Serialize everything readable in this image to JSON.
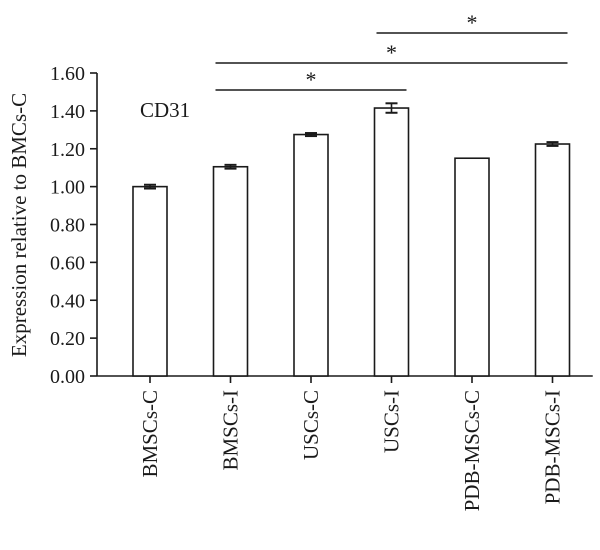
{
  "chart_data": {
    "type": "bar",
    "annotation": "CD31",
    "ylabel": "Expression relative to BMCs-C",
    "xlabel": "",
    "ylim": [
      0,
      1.6
    ],
    "yticks": [
      "0.00",
      "0.20",
      "0.40",
      "0.60",
      "0.80",
      "1.00",
      "1.20",
      "1.40",
      "1.60"
    ],
    "categories": [
      "BMSCs-C",
      "BMSCs-I",
      "USCs-C",
      "USCs-I",
      "PDB-MSCs-C",
      "PDB-MSCs-I"
    ],
    "values": [
      1.0,
      1.105,
      1.275,
      1.415,
      1.15,
      1.225
    ],
    "errors": [
      0.01,
      0.01,
      0.008,
      0.025,
      0.0,
      0.01
    ],
    "significance": [
      {
        "from": 1,
        "to": 3,
        "label": "*"
      },
      {
        "from": 1,
        "to": 5,
        "label": "*"
      },
      {
        "from": 3,
        "to": 5,
        "label": "*"
      }
    ],
    "bar_fill": "#ffffff",
    "bar_stroke": "#1a1a1a"
  }
}
